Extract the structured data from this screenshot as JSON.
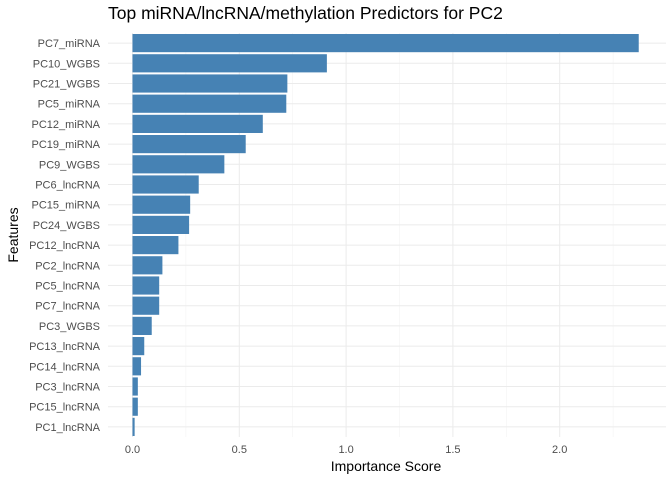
{
  "chart_data": {
    "type": "bar",
    "orientation": "horizontal",
    "title": "Top miRNA/lncRNA/methylation Predictors for PC2",
    "xlabel": "Importance Score",
    "ylabel": "Features",
    "xlim": [
      0,
      2.5
    ],
    "xticks": [
      0.0,
      0.5,
      1.0,
      1.5,
      2.0
    ],
    "xtick_labels": [
      "0.0",
      "0.5",
      "1.0",
      "1.5",
      "2.0"
    ],
    "grid": true,
    "bar_color": "#4682B4",
    "categories": [
      "PC7_miRNA",
      "PC10_WGBS",
      "PC21_WGBS",
      "PC5_miRNA",
      "PC12_miRNA",
      "PC19_miRNA",
      "PC9_WGBS",
      "PC6_lncRNA",
      "PC15_miRNA",
      "PC24_WGBS",
      "PC12_lncRNA",
      "PC2_lncRNA",
      "PC5_lncRNA",
      "PC7_lncRNA",
      "PC3_WGBS",
      "PC13_lncRNA",
      "PC14_lncRNA",
      "PC3_lncRNA",
      "PC15_lncRNA",
      "PC1_lncRNA"
    ],
    "values": [
      2.37,
      0.91,
      0.725,
      0.72,
      0.61,
      0.53,
      0.43,
      0.31,
      0.27,
      0.265,
      0.215,
      0.14,
      0.125,
      0.125,
      0.09,
      0.055,
      0.04,
      0.025,
      0.025,
      0.01
    ]
  }
}
